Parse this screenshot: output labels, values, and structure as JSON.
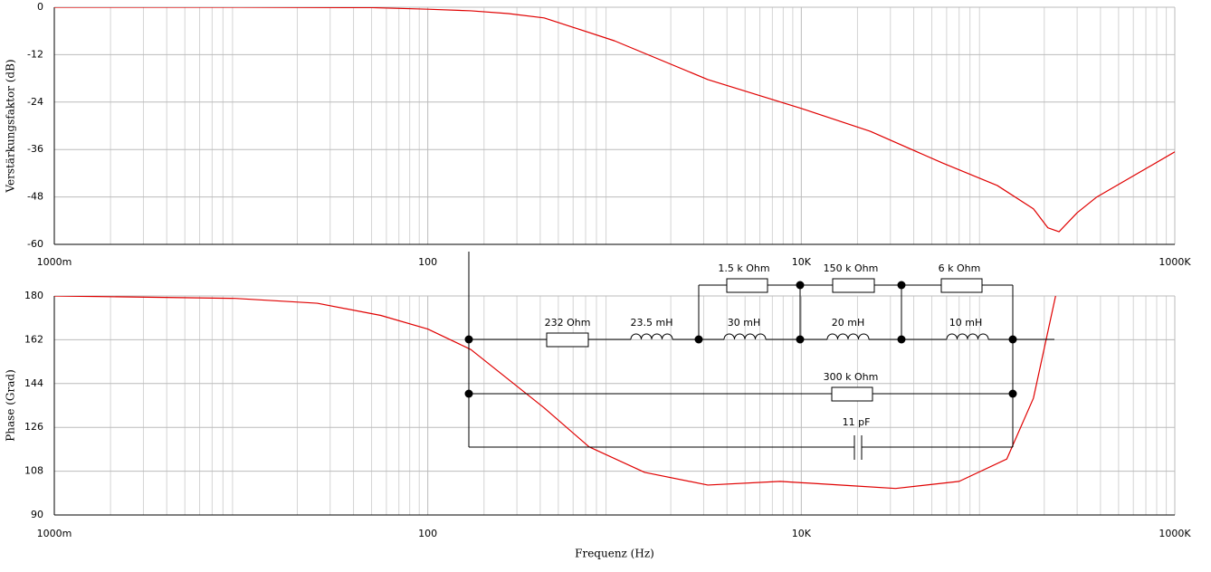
{
  "chart_data": [
    {
      "type": "line",
      "ylabel": "Verstärkungsfaktor (dB)",
      "xscale": "log",
      "grid": true,
      "color": "#e00000",
      "xlim": [
        1,
        1000000
      ],
      "xticks": [
        {
          "value": 1,
          "label": "1000m"
        },
        100,
        {
          "value": 10000,
          "label": "10K"
        },
        {
          "value": 1000000,
          "label": "1000K"
        }
      ],
      "ylim": [
        -60,
        0
      ],
      "yticks": [
        0,
        -12,
        -24,
        -36,
        -48,
        -60
      ],
      "x": [
        1,
        10,
        50,
        100,
        170,
        270,
        420,
        1000,
        3160,
        10000,
        23400,
        57000,
        112000,
        175000,
        209000,
        240000,
        300000,
        380000,
        1000000
      ],
      "values": [
        0,
        0,
        -0.1,
        -0.5,
        -0.9,
        -1.6,
        -2.7,
        -8.5,
        -18.3,
        -25.6,
        -31.4,
        -39.4,
        -45.1,
        -51,
        -55.8,
        -56.8,
        -52,
        -48.1,
        -36.6
      ]
    },
    {
      "type": "line",
      "ylabel": "Phase (Grad)",
      "xlabel": "Frequenz (Hz)",
      "xscale": "log",
      "grid": true,
      "color": "#e00000",
      "xlim": [
        1,
        1000000
      ],
      "xticks": [
        {
          "value": 1,
          "label": "1000m"
        },
        100,
        {
          "value": 10000,
          "label": "10K"
        },
        {
          "value": 1000000,
          "label": "1000K"
        }
      ],
      "ylim": [
        90,
        180
      ],
      "yticks": [
        180,
        162,
        144,
        126,
        108,
        90
      ],
      "x": [
        1,
        9.3,
        25.6,
        56,
        100,
        170,
        420,
        730,
        1450,
        3160,
        7700,
        18800,
        32000,
        70000,
        126000,
        175000,
        230000
      ],
      "values": [
        180,
        179,
        177,
        172,
        166.4,
        158,
        134,
        118,
        107.5,
        102.3,
        103.8,
        102,
        100.9,
        103.8,
        113,
        138,
        180
      ]
    }
  ],
  "circuit": {
    "labels": [
      "232  Ohm",
      "23.5 mH",
      "1.5 k Ohm",
      "150 k Ohm",
      "6 k Ohm",
      "30 mH",
      "20 mH",
      "10 mH",
      "300 k Ohm",
      "11 pF"
    ]
  }
}
